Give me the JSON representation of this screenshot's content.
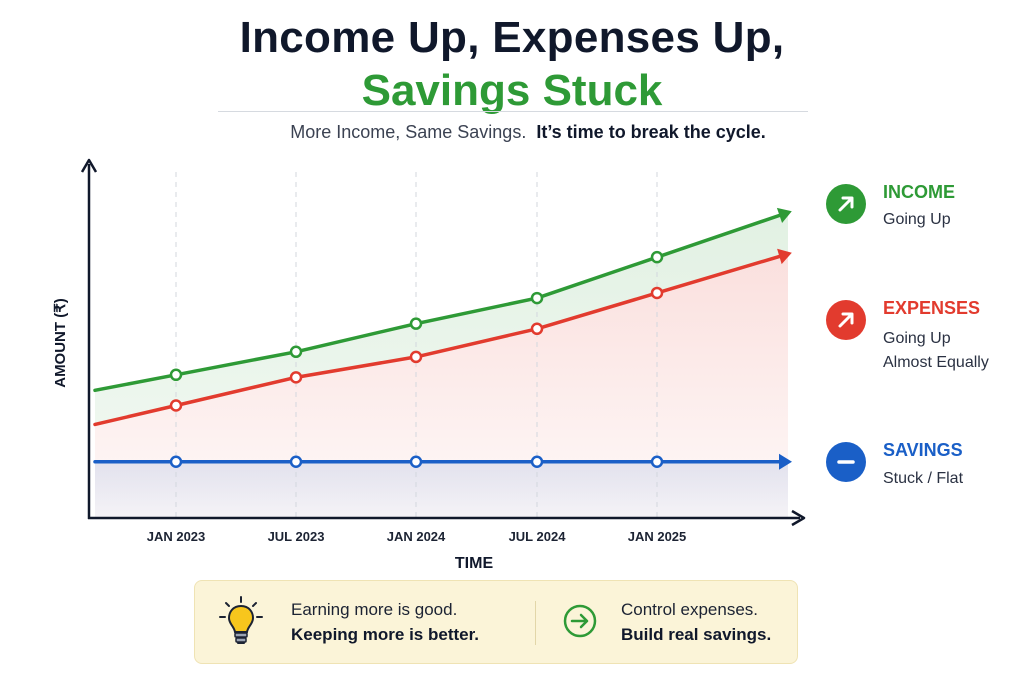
{
  "title": {
    "line1": "Income Up, Expenses Up,",
    "line2": "Savings Stuck"
  },
  "subtitle": {
    "plain": "More Income, Same Savings.",
    "bold": "It’s time to break the cycle."
  },
  "colors": {
    "income": "#2e9a36",
    "expenses": "#e23b2e",
    "savings": "#1a5fc7",
    "callout_bg": "#fbf4d8"
  },
  "chart_data": {
    "type": "line",
    "xlabel": "TIME",
    "ylabel": "AMOUNT (₹)",
    "x": [
      "JAN 2023",
      "JUL 2023",
      "JAN 2024",
      "JUL 2024",
      "JAN 2025"
    ],
    "grid": "vertical dashed lines at each x tick",
    "y_tick_labels": "none shown",
    "series": [
      {
        "name": "INCOME",
        "values": [
          2.8,
          3.25,
          3.8,
          4.3,
          5.1
        ]
      },
      {
        "name": "EXPENSES",
        "values": [
          2.2,
          2.75,
          3.15,
          3.7,
          4.4
        ]
      },
      {
        "name": "SAVINGS",
        "values": [
          1.1,
          1.1,
          1.1,
          1.1,
          1.1
        ]
      }
    ],
    "ylim": [
      0,
      7
    ],
    "legend_placement": "right"
  },
  "legend": [
    {
      "key": "income",
      "label": "INCOME",
      "desc": [
        "Going Up"
      ],
      "icon": "arrow-up-right-icon"
    },
    {
      "key": "expenses",
      "label": "EXPENSES",
      "desc": [
        "Going Up",
        "Almost Equally"
      ],
      "icon": "arrow-up-right-icon"
    },
    {
      "key": "savings",
      "label": "SAVINGS",
      "desc": [
        "Stuck / Flat"
      ],
      "icon": "minus-icon"
    }
  ],
  "callout": {
    "left_line1": "Earning more is good.",
    "left_line2": "Keeping more is better.",
    "right_line1": "Control expenses.",
    "right_line2": "Build real savings.",
    "left_icon": "lightbulb-icon",
    "right_icon": "arrow-right-circle-icon"
  }
}
